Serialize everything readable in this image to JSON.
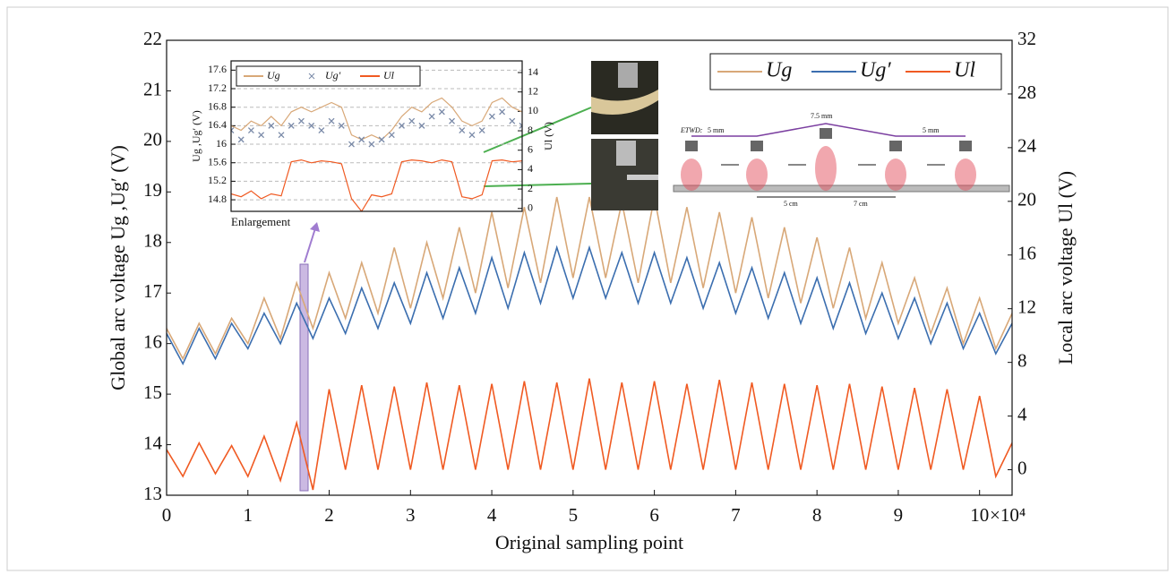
{
  "chart_data": [
    {
      "type": "line",
      "xlabel": "Original sampling point",
      "x_multiplier": "×10⁴",
      "ylabel": "Global arc voltage Ug ,Ug′ (V)",
      "y2label": "Local arc voltage Ul (V)",
      "x": [
        0,
        0.2,
        0.4,
        0.6,
        0.8,
        1.0,
        1.2,
        1.4,
        1.6,
        1.8,
        2.0,
        2.2,
        2.4,
        2.6,
        2.8,
        3.0,
        3.2,
        3.4,
        3.6,
        3.8,
        4.0,
        4.2,
        4.4,
        4.6,
        4.8,
        5.0,
        5.2,
        5.4,
        5.6,
        5.8,
        6.0,
        6.2,
        6.4,
        6.6,
        6.8,
        7.0,
        7.2,
        7.4,
        7.6,
        7.8,
        8.0,
        8.2,
        8.4,
        8.6,
        8.8,
        9.0,
        9.2,
        9.4,
        9.6,
        9.8,
        10.0,
        10.2,
        10.4
      ],
      "xlim": [
        0,
        10.4
      ],
      "xticks": [
        0,
        1,
        2,
        3,
        4,
        5,
        6,
        7,
        8,
        9,
        10
      ],
      "ylim": [
        13,
        22
      ],
      "yticks": [
        13,
        14,
        15,
        16,
        17,
        18,
        19,
        20,
        21,
        22
      ],
      "y2lim": [
        -1.9,
        32
      ],
      "y2ticks": [
        0,
        4,
        8,
        12,
        16,
        20,
        24,
        28,
        32
      ],
      "legend": "top-right",
      "series": [
        {
          "name": "Ug",
          "color": "#d8a878",
          "values": [
            16.3,
            15.7,
            16.4,
            15.8,
            16.5,
            16.0,
            16.9,
            16.1,
            17.2,
            16.3,
            17.4,
            16.5,
            17.6,
            16.6,
            17.9,
            16.7,
            18.0,
            16.9,
            18.3,
            17.0,
            18.6,
            17.1,
            18.7,
            17.2,
            18.9,
            17.3,
            18.9,
            17.3,
            18.8,
            17.2,
            18.9,
            17.2,
            18.7,
            17.1,
            18.6,
            17.0,
            18.5,
            16.9,
            18.3,
            16.8,
            18.1,
            16.7,
            17.9,
            16.5,
            17.6,
            16.4,
            17.3,
            16.2,
            17.1,
            16.0,
            16.9,
            15.9,
            16.6
          ]
        },
        {
          "name": "Ug′",
          "color": "#3b6eaf",
          "values": [
            16.2,
            15.6,
            16.3,
            15.7,
            16.4,
            15.9,
            16.6,
            16.0,
            16.8,
            16.1,
            16.9,
            16.2,
            17.1,
            16.3,
            17.2,
            16.4,
            17.4,
            16.5,
            17.5,
            16.6,
            17.7,
            16.7,
            17.8,
            16.8,
            17.9,
            16.9,
            17.9,
            16.9,
            17.8,
            16.8,
            17.8,
            16.8,
            17.7,
            16.7,
            17.6,
            16.6,
            17.5,
            16.5,
            17.4,
            16.4,
            17.3,
            16.3,
            17.2,
            16.2,
            17.0,
            16.1,
            16.9,
            16.0,
            16.8,
            15.9,
            16.6,
            15.8,
            16.4
          ]
        },
        {
          "name": "Ul",
          "color": "#f05a22",
          "axis": "y2",
          "values": [
            1.5,
            -0.5,
            2.0,
            -0.3,
            1.8,
            -0.5,
            2.5,
            -0.8,
            3.5,
            -1.5,
            6.0,
            0,
            6.3,
            0,
            6.2,
            0,
            6.5,
            0,
            6.3,
            0,
            6.4,
            0,
            6.6,
            0,
            6.5,
            0,
            6.8,
            0,
            6.5,
            0,
            6.6,
            0,
            6.4,
            0,
            6.7,
            0,
            6.5,
            0,
            6.4,
            0,
            6.3,
            0,
            6.4,
            0,
            6.2,
            0,
            6.1,
            0,
            6.0,
            0,
            5.5,
            -0.5,
            2.0
          ]
        }
      ]
    },
    {
      "type": "line",
      "ylabel": "Ug ,Ug′ (V)",
      "y2label": "Ul (V)",
      "ylim": [
        14.55,
        17.8
      ],
      "yticks": [
        14.8,
        15.2,
        15.6,
        16.0,
        16.4,
        16.8,
        17.2,
        17.6
      ],
      "y2lim": [
        -0.3,
        15.2
      ],
      "y2ticks": [
        0,
        2,
        4,
        6,
        8,
        10,
        12,
        14
      ],
      "grid": true,
      "legend": "top-left",
      "series": [
        {
          "name": "Ug",
          "color": "#d8a878",
          "values": [
            16.4,
            16.3,
            16.5,
            16.4,
            16.6,
            16.4,
            16.7,
            16.8,
            16.7,
            16.8,
            16.9,
            16.8,
            16.2,
            16.1,
            16.2,
            16.1,
            16.3,
            16.6,
            16.8,
            16.7,
            16.9,
            17.0,
            16.8,
            16.5,
            16.4,
            16.5,
            16.9,
            17.0,
            16.8,
            16.7
          ]
        },
        {
          "name": "Ug′",
          "color": "#7a8aa8",
          "style": "markers",
          "values": [
            16.3,
            16.1,
            16.3,
            16.2,
            16.4,
            16.2,
            16.4,
            16.5,
            16.4,
            16.3,
            16.5,
            16.4,
            16.0,
            16.1,
            16.0,
            16.1,
            16.2,
            16.4,
            16.5,
            16.4,
            16.6,
            16.7,
            16.5,
            16.3,
            16.2,
            16.3,
            16.6,
            16.7,
            16.5,
            16.4
          ]
        },
        {
          "name": "Ul",
          "color": "#f05a22",
          "axis": "y2",
          "values": [
            1.5,
            1.2,
            1.8,
            1.0,
            1.5,
            1.3,
            4.8,
            5.0,
            4.7,
            4.9,
            4.8,
            4.6,
            1.0,
            -0.3,
            1.4,
            1.2,
            1.5,
            4.8,
            5.0,
            4.9,
            4.7,
            5.0,
            4.8,
            1.2,
            1.0,
            1.4,
            4.9,
            5.0,
            4.8,
            4.9
          ]
        }
      ]
    }
  ],
  "diagram": {
    "enlargement": "Enlargement",
    "etwd": "ETWD:",
    "d1": "5 mm",
    "d2": "7.5 mm",
    "d3": "5 mm",
    "s1": "5 cm",
    "s2": "7 cm"
  }
}
